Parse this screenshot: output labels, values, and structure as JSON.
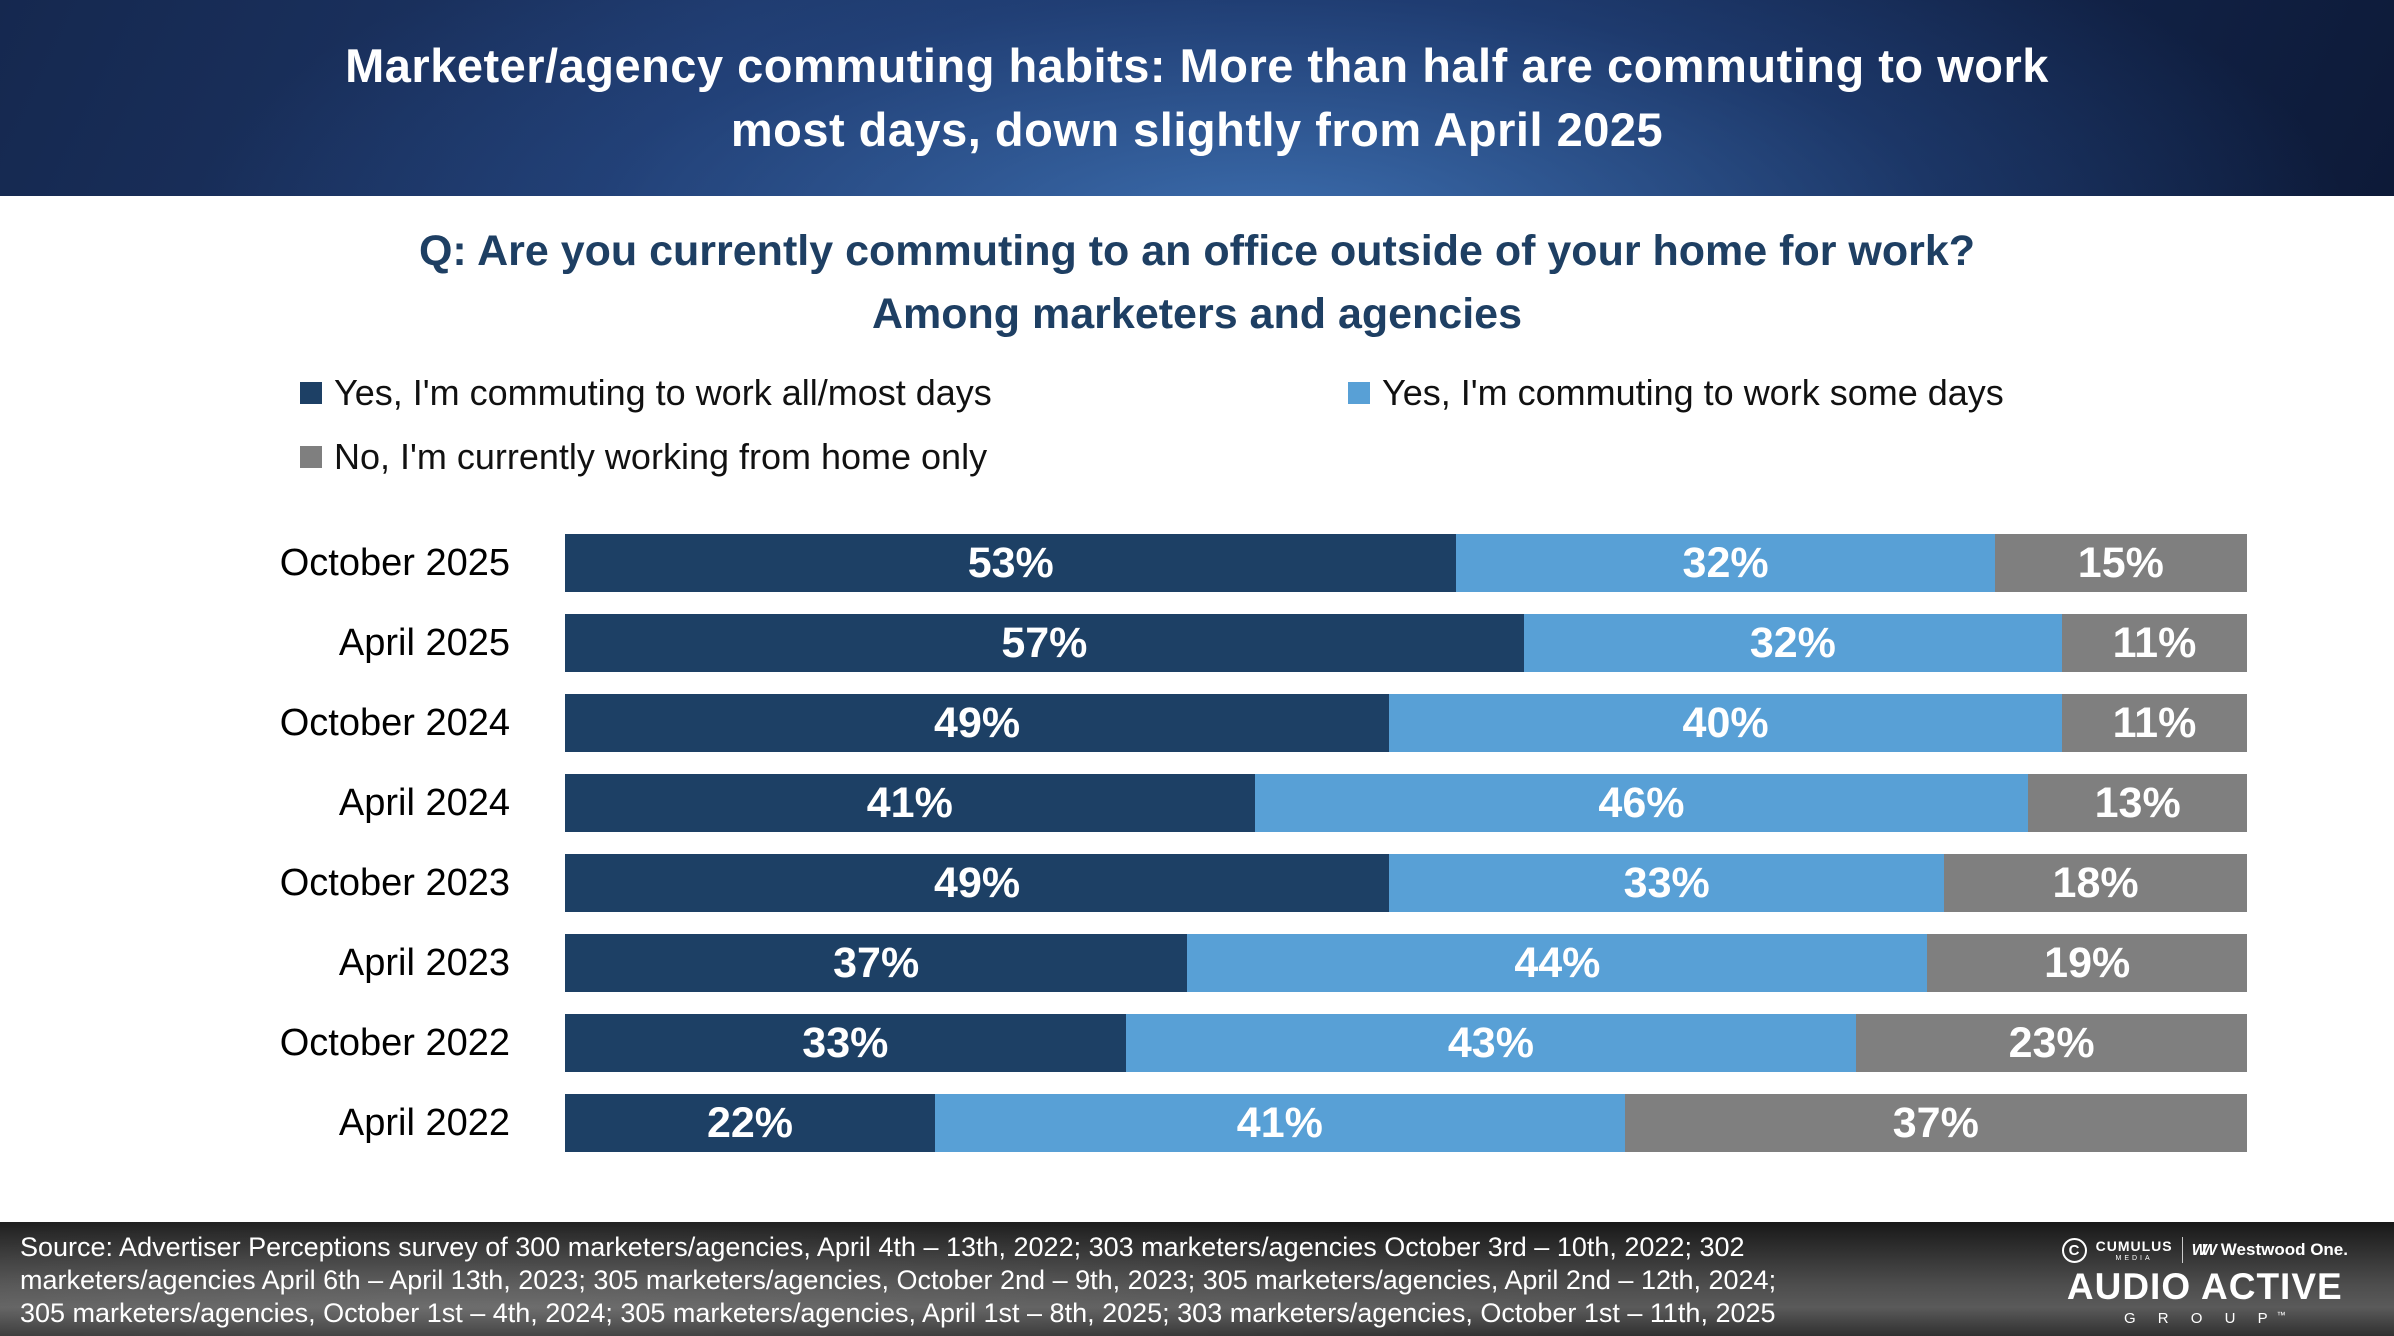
{
  "slide": {
    "title_line1": "Marketer/agency commuting habits: More than half are commuting to work",
    "title_line2": "most days, down slightly from April 2025"
  },
  "question": {
    "line1": "Q: Are you currently commuting to an office outside of your home for work?",
    "line2": "Among marketers and agencies"
  },
  "chart_data": {
    "type": "bar",
    "orientation": "horizontal",
    "stacked": true,
    "title": "Q: Are you currently commuting to an office outside of your home for work? Among marketers and agencies",
    "legend_position": "top",
    "value_suffix": "%",
    "xlim": [
      0,
      100
    ],
    "grid": false,
    "categories": [
      "October 2025",
      "April 2025",
      "October 2024",
      "April 2024",
      "October 2023",
      "April 2023",
      "October 2022",
      "April 2022"
    ],
    "series": [
      {
        "key": "all-most-days",
        "name": "Yes, I'm commuting to work all/most days",
        "color": "#1D4065",
        "values": [
          53,
          57,
          49,
          41,
          49,
          37,
          33,
          22
        ]
      },
      {
        "key": "some-days",
        "name": "Yes, I'm commuting to work some days",
        "color": "#58A0D6",
        "values": [
          32,
          32,
          40,
          46,
          33,
          44,
          43,
          41
        ]
      },
      {
        "key": "home-only",
        "name": "No, I'm currently working from home only",
        "color": "#7F7F7F",
        "values": [
          15,
          11,
          11,
          13,
          18,
          19,
          23,
          37
        ]
      }
    ]
  },
  "footer": {
    "source_lines": [
      "Source: Advertiser Perceptions survey of 300 marketers/agencies, April 4th – 13th,  2022; 303 marketers/agencies October 3rd – 10th, 2022; 302",
      "marketers/agencies April 6th – April 13th, 2023; 305 marketers/agencies, October 2nd – 9th, 2023; 305 marketers/agencies, April 2nd – 12th, 2024;",
      "305 marketers/agencies, October 1st – 4th, 2024; 305 marketers/agencies, April 1st –  8th, 2025; 303 marketers/agencies, October 1st – 11th, 2025"
    ],
    "logo": {
      "cumulus": "CUMULUS",
      "media": "MEDIA",
      "cmark": "C",
      "westwood": "Westwood One.",
      "audio_active": "AUDIO ACTIVE",
      "group": "G R O U P",
      "trademark": "™"
    }
  },
  "colors": {
    "header_navy_dark": "#0D1A38",
    "header_navy_glow": "#4074B6",
    "question_navy": "#1E3F63",
    "bar_navy": "#1D4065",
    "bar_light_blue": "#58A0D6",
    "bar_gray": "#7F7F7F",
    "footer_gray": "#4D4D4D"
  }
}
